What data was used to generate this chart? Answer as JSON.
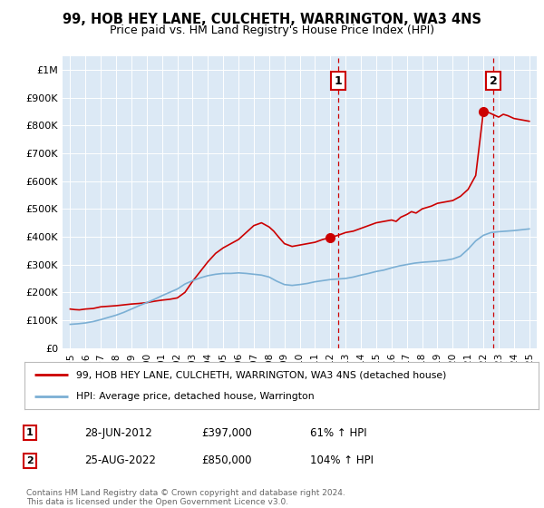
{
  "title": "99, HOB HEY LANE, CULCHETH, WARRINGTON, WA3 4NS",
  "subtitle": "Price paid vs. HM Land Registry's House Price Index (HPI)",
  "title_fontsize": 10.5,
  "subtitle_fontsize": 9,
  "plot_bg_color": "#dce9f5",
  "legend_label_red": "99, HOB HEY LANE, CULCHETH, WARRINGTON, WA3 4NS (detached house)",
  "legend_label_blue": "HPI: Average price, detached house, Warrington",
  "footer": "Contains HM Land Registry data © Crown copyright and database right 2024.\nThis data is licensed under the Open Government Licence v3.0.",
  "sale1_date": "28-JUN-2012",
  "sale1_price": "£397,000",
  "sale1_hpi": "61% ↑ HPI",
  "sale2_date": "25-AUG-2022",
  "sale2_price": "£850,000",
  "sale2_hpi": "104% ↑ HPI",
  "red_line_x": [
    1995.0,
    1995.3,
    1995.6,
    1996.0,
    1996.5,
    1997.0,
    1997.5,
    1998.0,
    1998.5,
    1999.0,
    1999.5,
    2000.0,
    2000.5,
    2001.0,
    2001.5,
    2002.0,
    2002.5,
    2003.0,
    2003.5,
    2004.0,
    2004.5,
    2005.0,
    2005.5,
    2006.0,
    2006.5,
    2007.0,
    2007.5,
    2008.0,
    2008.3,
    2008.6,
    2009.0,
    2009.5,
    2010.0,
    2010.5,
    2011.0,
    2011.5,
    2012.0,
    2012.5,
    2013.0,
    2013.5,
    2014.0,
    2014.5,
    2015.0,
    2015.5,
    2016.0,
    2016.3,
    2016.6,
    2017.0,
    2017.3,
    2017.6,
    2018.0,
    2018.3,
    2018.6,
    2019.0,
    2019.5,
    2020.0,
    2020.5,
    2021.0,
    2021.5,
    2022.0,
    2022.1,
    2022.2,
    2022.4,
    2022.6,
    2022.8,
    2023.0,
    2023.3,
    2023.6,
    2024.0,
    2024.5,
    2025.0
  ],
  "red_line_y": [
    140000,
    138000,
    137000,
    140000,
    142000,
    148000,
    150000,
    152000,
    155000,
    158000,
    160000,
    163000,
    168000,
    172000,
    175000,
    180000,
    200000,
    240000,
    275000,
    310000,
    340000,
    360000,
    375000,
    390000,
    415000,
    440000,
    450000,
    435000,
    420000,
    400000,
    375000,
    365000,
    370000,
    375000,
    380000,
    390000,
    397000,
    405000,
    415000,
    420000,
    430000,
    440000,
    450000,
    455000,
    460000,
    455000,
    470000,
    480000,
    490000,
    485000,
    500000,
    505000,
    510000,
    520000,
    525000,
    530000,
    545000,
    570000,
    620000,
    850000,
    855000,
    850000,
    845000,
    840000,
    835000,
    830000,
    840000,
    835000,
    825000,
    820000,
    815000
  ],
  "blue_line_x": [
    1995.0,
    1995.5,
    1996.0,
    1996.5,
    1997.0,
    1997.5,
    1998.0,
    1998.5,
    1999.0,
    1999.5,
    2000.0,
    2000.5,
    2001.0,
    2001.5,
    2002.0,
    2002.5,
    2003.0,
    2003.5,
    2004.0,
    2004.5,
    2005.0,
    2005.5,
    2006.0,
    2006.5,
    2007.0,
    2007.5,
    2008.0,
    2008.5,
    2009.0,
    2009.5,
    2010.0,
    2010.5,
    2011.0,
    2011.5,
    2012.0,
    2012.5,
    2013.0,
    2013.5,
    2014.0,
    2014.5,
    2015.0,
    2015.5,
    2016.0,
    2016.5,
    2017.0,
    2017.5,
    2018.0,
    2018.5,
    2019.0,
    2019.5,
    2020.0,
    2020.5,
    2021.0,
    2021.5,
    2022.0,
    2022.5,
    2023.0,
    2023.5,
    2024.0,
    2024.5,
    2025.0
  ],
  "blue_line_y": [
    85000,
    87000,
    90000,
    95000,
    102000,
    110000,
    118000,
    128000,
    140000,
    152000,
    163000,
    175000,
    188000,
    200000,
    212000,
    230000,
    242000,
    252000,
    260000,
    265000,
    268000,
    268000,
    270000,
    268000,
    265000,
    262000,
    255000,
    240000,
    228000,
    225000,
    228000,
    232000,
    238000,
    242000,
    246000,
    248000,
    250000,
    255000,
    262000,
    268000,
    275000,
    280000,
    288000,
    295000,
    300000,
    305000,
    308000,
    310000,
    312000,
    315000,
    320000,
    330000,
    355000,
    385000,
    405000,
    415000,
    418000,
    420000,
    422000,
    425000,
    428000
  ],
  "vline1_x": 2012.5,
  "vline2_x": 2022.65,
  "dot1_x": 2012.0,
  "dot1_y": 397000,
  "dot2_x": 2022.0,
  "dot2_y": 850000,
  "ylim": [
    0,
    1050000
  ],
  "xlim": [
    1994.5,
    2025.5
  ],
  "yticks": [
    0,
    100000,
    200000,
    300000,
    400000,
    500000,
    600000,
    700000,
    800000,
    900000,
    1000000
  ],
  "ytick_labels": [
    "£0",
    "£100K",
    "£200K",
    "£300K",
    "£400K",
    "£500K",
    "£600K",
    "£700K",
    "£800K",
    "£900K",
    "£1M"
  ],
  "xticks": [
    1995,
    1996,
    1997,
    1998,
    1999,
    2000,
    2001,
    2002,
    2003,
    2004,
    2005,
    2006,
    2007,
    2008,
    2009,
    2010,
    2011,
    2012,
    2013,
    2014,
    2015,
    2016,
    2017,
    2018,
    2019,
    2020,
    2021,
    2022,
    2023,
    2024,
    2025
  ],
  "red_color": "#cc0000",
  "blue_color": "#7bafd4",
  "vline_color": "#cc0000",
  "dot_color": "#cc0000"
}
